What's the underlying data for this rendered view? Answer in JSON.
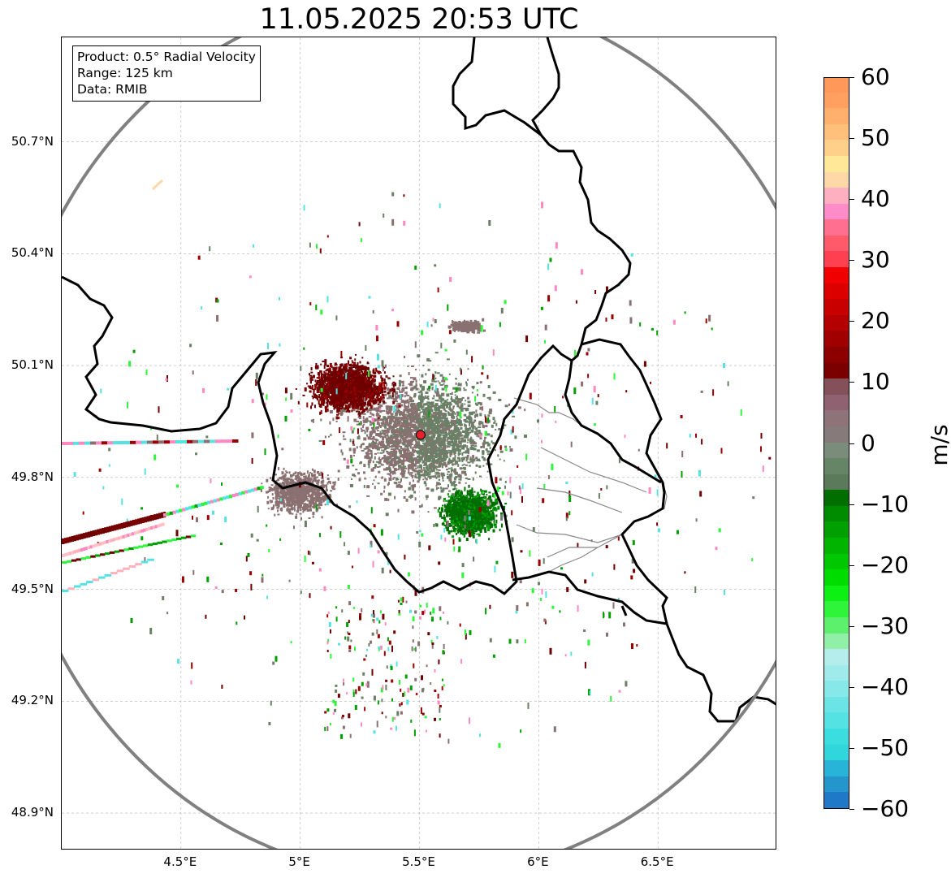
{
  "title": "11.05.2025 20:53 UTC",
  "info_box": {
    "product": "Product: 0.5° Radial Velocity",
    "range": "Range: 125 km",
    "data_source": "Data: RMIB"
  },
  "axes": {
    "lat_ticks": [
      "50.7°N",
      "50.4°N",
      "50.1°N",
      "49.8°N",
      "49.5°N",
      "49.2°N",
      "48.9°N"
    ],
    "lon_ticks": [
      "4.5°E",
      "5°E",
      "5.5°E",
      "6°E",
      "6.5°E"
    ],
    "lat_values": [
      50.7,
      50.4,
      50.1,
      49.8,
      49.5,
      49.2,
      48.9
    ],
    "lon_values": [
      4.5,
      5.0,
      5.5,
      6.0,
      6.5
    ],
    "lon_range": [
      4.0,
      7.0
    ],
    "lat_range": [
      48.8,
      50.98
    ],
    "grid": true
  },
  "radar_site": {
    "lon": 5.505,
    "lat": 49.914,
    "marker_color": "#e8202a"
  },
  "range_ring_color": "#808080",
  "colorbar": {
    "label": "m/s",
    "vmin": -60,
    "vmax": 60,
    "ticks": [
      "60",
      "50",
      "40",
      "30",
      "20",
      "10",
      "0",
      "−10",
      "−20",
      "−30",
      "−40",
      "−50",
      "−60"
    ],
    "tick_values": [
      60,
      50,
      40,
      30,
      20,
      10,
      0,
      -10,
      -20,
      -30,
      -40,
      -50,
      -60
    ],
    "colors_bottom_to_top": [
      "#1f78c8",
      "#2596cc",
      "#27b4d8",
      "#2fd6dc",
      "#3bdede",
      "#55e2e2",
      "#6ae4e4",
      "#86e8e8",
      "#9feaea",
      "#b5ecec",
      "#90f0a8",
      "#5cf06c",
      "#2ef43a",
      "#0cf014",
      "#00dc00",
      "#00c800",
      "#00b400",
      "#00a000",
      "#008c00",
      "#006e00",
      "#5a7a5a",
      "#668466",
      "#7a8c7a",
      "#867a7a",
      "#8e7478",
      "#8e6270",
      "#84505a",
      "#7a0000",
      "#8c0000",
      "#a00000",
      "#b40000",
      "#c80000",
      "#dc0000",
      "#f00000",
      "#ff4050",
      "#ff5a6a",
      "#ff7090",
      "#ff8cc8",
      "#ffb0c0",
      "#ffd8a8",
      "#ffe898",
      "#ffd08a",
      "#ffc07c",
      "#ffb06c",
      "#ffa060",
      "#ff9858"
    ]
  },
  "echo_colors": {
    "approaching_dark": "#006e00",
    "approaching": "#00a000",
    "zero_gray_green": "#6a8066",
    "zero_gray_red": "#8a7070",
    "receding_dark": "#6e0000",
    "receding": "#9a0000",
    "pink": "#ff88c0",
    "light_pink": "#ffb0b8",
    "bright_green": "#2ef43a",
    "cyan": "#55e2e2",
    "peach": "#ffd8a8"
  }
}
